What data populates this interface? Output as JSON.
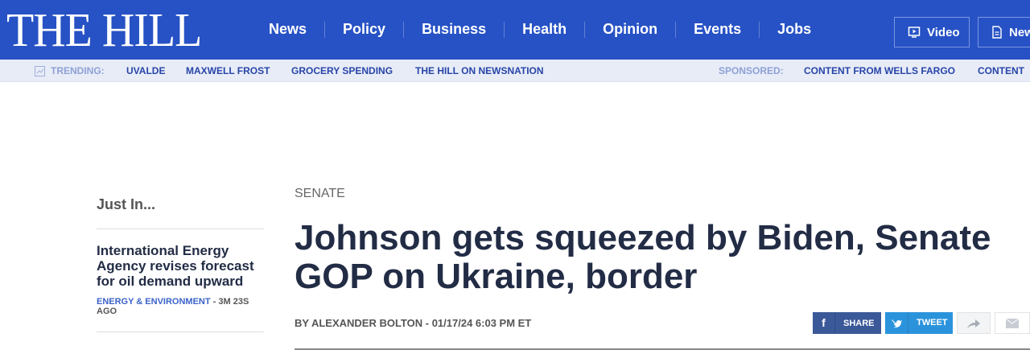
{
  "header": {
    "logo": "THE HILL",
    "nav": [
      "News",
      "Policy",
      "Business",
      "Health",
      "Opinion",
      "Events",
      "Jobs"
    ],
    "video_label": "Video",
    "newsletter_label": "New"
  },
  "trending": {
    "label": "TRENDING:",
    "links": [
      "UVALDE",
      "MAXWELL FROST",
      "GROCERY SPENDING",
      "THE HILL ON NEWSNATION"
    ],
    "sponsored_label": "SPONSORED:",
    "sponsored_links": [
      "CONTENT FROM WELLS FARGO",
      "CONTENT"
    ]
  },
  "sidebar": {
    "heading": "Just In...",
    "item": {
      "title": "International Energy Agency revises forecast for oil demand upward",
      "category": "ENERGY & ENVIRONMENT",
      "time": " - 3M 23S AGO"
    }
  },
  "article": {
    "kicker": "SENATE",
    "headline_line1": "Johnson gets squeezed by Biden, Senate",
    "headline_line2": "GOP on Ukraine, border",
    "byline": "BY ALEXANDER BOLTON - 01/17/24 6:03 PM ET"
  },
  "share": {
    "facebook": "SHARE",
    "twitter": "TWEET"
  }
}
